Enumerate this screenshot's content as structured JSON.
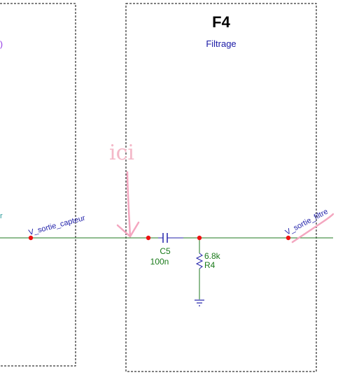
{
  "blocks": {
    "left": {
      "fragment": ")",
      "fragment_color": "#8a2be2"
    },
    "f4": {
      "title": "F4",
      "subtitle": "Filtrage"
    }
  },
  "components": {
    "capacitor": {
      "ref": "C5",
      "value": "100n"
    },
    "resistor": {
      "ref": "R4",
      "value": "6.8k"
    }
  },
  "nets": {
    "in": {
      "label": "V_sortie_capteur"
    },
    "out": {
      "label": "V_sortie_filtre"
    }
  },
  "annotation": {
    "text": "ici"
  },
  "left_edge_fragment": "r",
  "colors": {
    "wire": "#1f7a1f",
    "component": "#2222aa",
    "junction": "#ee1111",
    "annotation": "#f4a6bf",
    "border": "#000000"
  }
}
